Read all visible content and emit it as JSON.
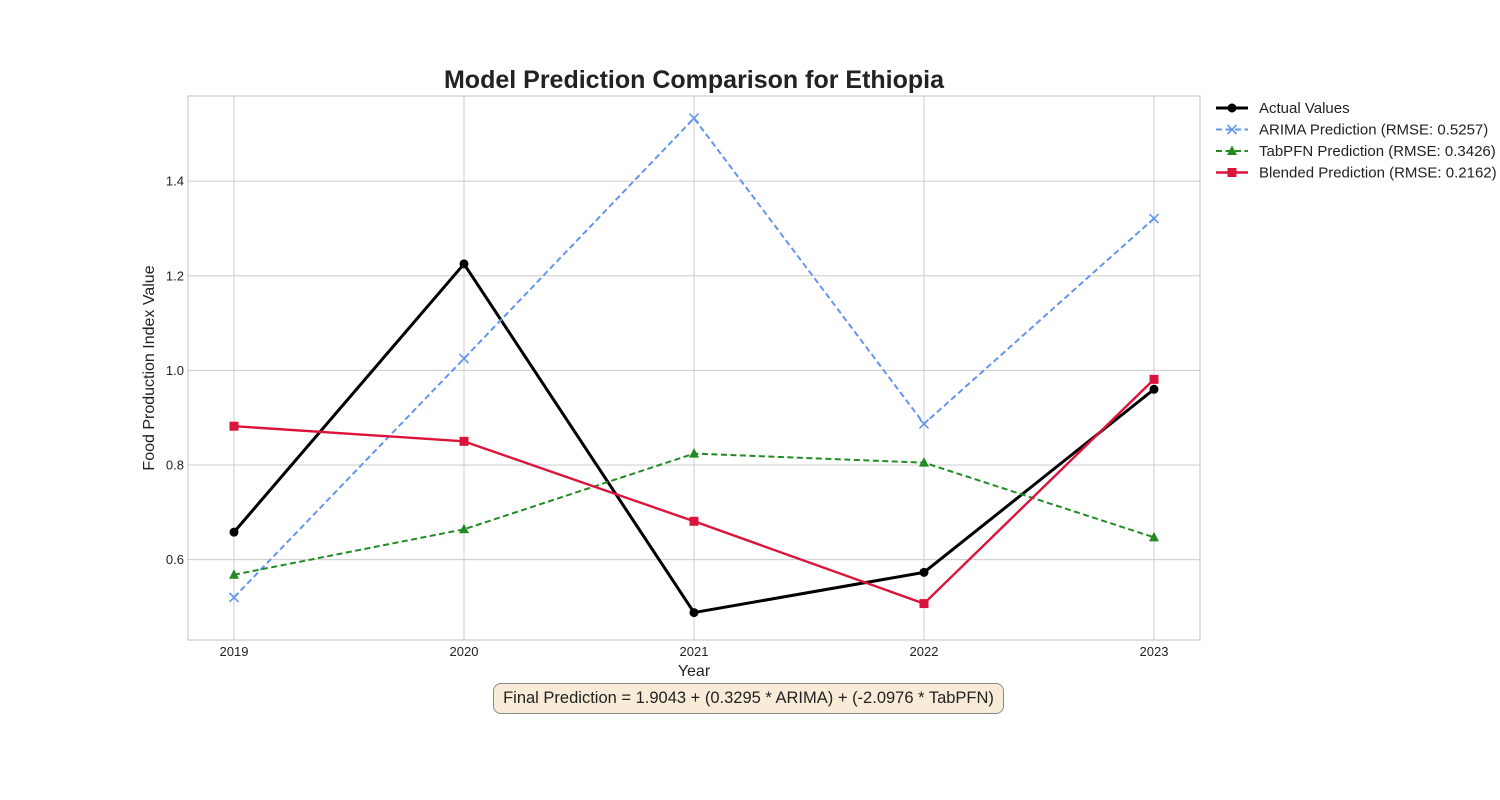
{
  "chart_data": {
    "type": "line",
    "title": "Model Prediction Comparison for Ethiopia",
    "xlabel": "Year",
    "ylabel": "Food Production Index Value",
    "categories": [
      "2019",
      "2020",
      "2021",
      "2022",
      "2023"
    ],
    "x_ticks": [
      "2019",
      "2020",
      "2021",
      "2022",
      "2023"
    ],
    "y_ticks": [
      "0.6",
      "0.8",
      "1.0",
      "1.2",
      "1.4"
    ],
    "ylim": [
      0.43,
      1.58
    ],
    "grid": true,
    "legend_position": "outside-top-right",
    "series": [
      {
        "name": "Actual Values",
        "values": [
          0.658,
          1.225,
          0.488,
          0.573,
          0.96
        ],
        "color": "#000000",
        "linestyle": "solid",
        "marker": "circle",
        "linewidth": 3
      },
      {
        "name": "ARIMA Prediction (RMSE: 0.5257)",
        "values": [
          0.52,
          1.025,
          1.533,
          0.887,
          1.321
        ],
        "color": "#6495ED",
        "linestyle": "dashed",
        "marker": "x",
        "linewidth": 2
      },
      {
        "name": "TabPFN Prediction (RMSE: 0.3426)",
        "values": [
          0.568,
          0.664,
          0.824,
          0.805,
          0.647
        ],
        "color": "#228B22",
        "linestyle": "dashed",
        "marker": "triangle",
        "linewidth": 2
      },
      {
        "name": "Blended Prediction (RMSE: 0.2162)",
        "values": [
          0.882,
          0.85,
          0.681,
          0.507,
          0.981
        ],
        "color": "#DC143C",
        "linestyle": "solid",
        "marker": "square",
        "linewidth": 2.4
      }
    ],
    "annotation": "Final Prediction = 1.9043 + (0.3295 * ARIMA) + (-2.0976 * TabPFN)"
  }
}
